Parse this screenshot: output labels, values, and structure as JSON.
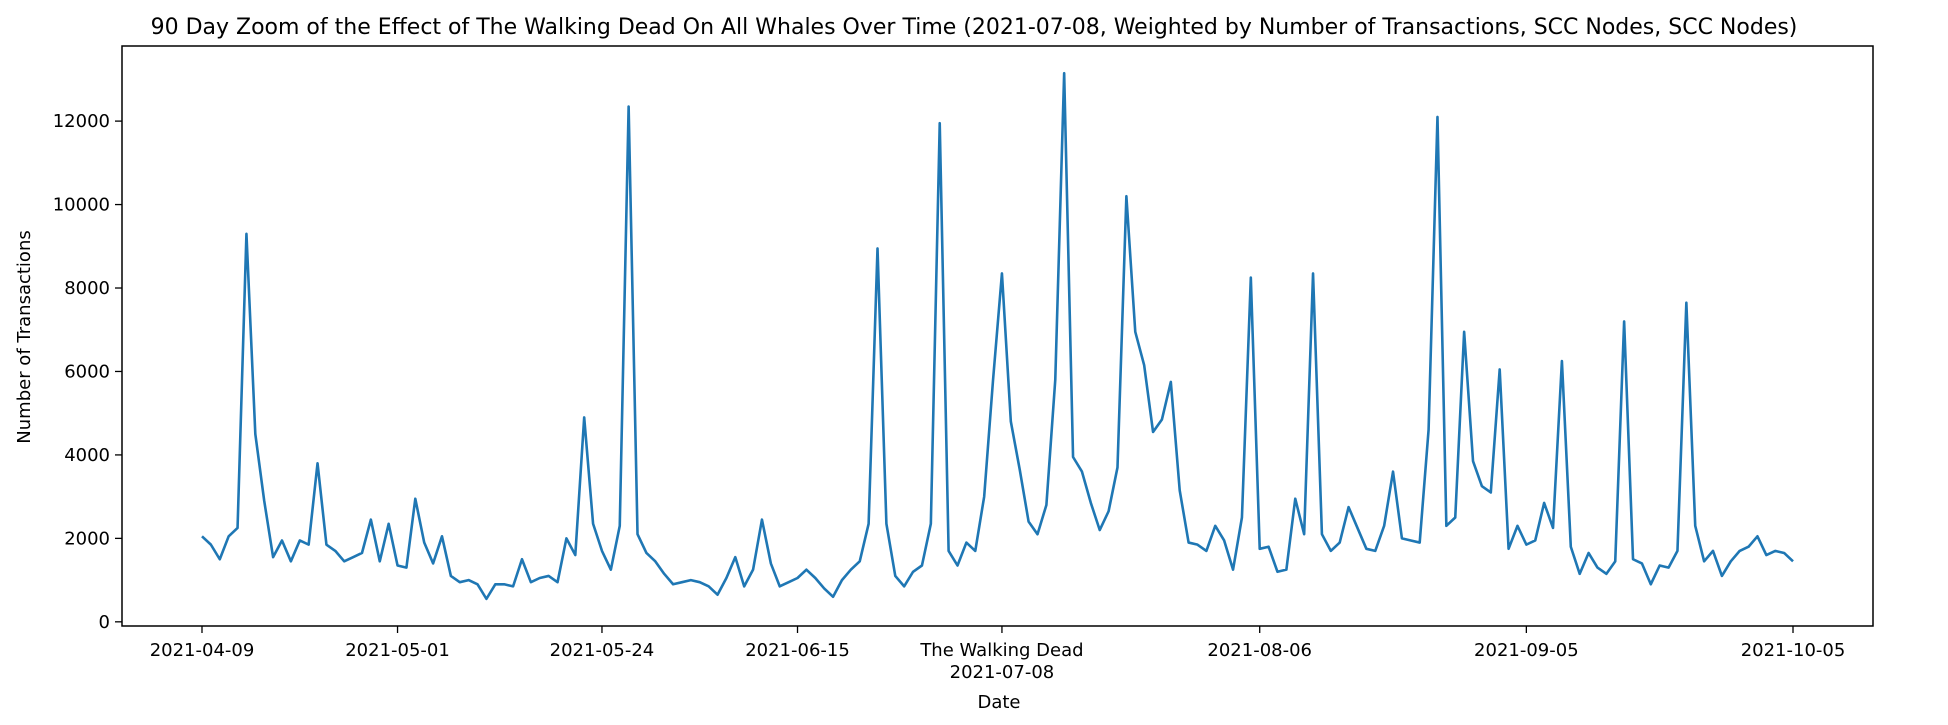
{
  "chart_data": {
    "type": "line",
    "title": "90 Day Zoom of the Effect of The Walking Dead On All Whales Over Time (2021-07-08, Weighted by Number of Transactions, SCC Nodes, SCC Nodes)",
    "xlabel": "Date",
    "ylabel": "Number of Transactions",
    "x_start": "2021-04-09",
    "x_end": "2021-10-05",
    "xlim": [
      "2021-03-31",
      "2021-10-14"
    ],
    "ylim": [
      -100,
      13800
    ],
    "grid": false,
    "legend": "none",
    "line_color": "#1f77b4",
    "event": {
      "label": "The Walking Dead",
      "date": "2021-07-08"
    },
    "x_ticks": [
      {
        "date": "2021-04-09",
        "label": "2021-04-09"
      },
      {
        "date": "2021-05-01",
        "label": "2021-05-01"
      },
      {
        "date": "2021-05-24",
        "label": "2021-05-24"
      },
      {
        "date": "2021-06-15",
        "label": "2021-06-15"
      },
      {
        "date": "2021-07-08",
        "label": "The Walking Dead",
        "label2": "2021-07-08"
      },
      {
        "date": "2021-08-06",
        "label": "2021-08-06"
      },
      {
        "date": "2021-09-05",
        "label": "2021-09-05"
      },
      {
        "date": "2021-10-05",
        "label": "2021-10-05"
      }
    ],
    "y_ticks": [
      0,
      2000,
      4000,
      6000,
      8000,
      10000,
      12000
    ],
    "series": [
      {
        "values": [
          2050,
          1850,
          1500,
          2050,
          2250,
          9300,
          4500,
          2900,
          1550,
          1950,
          1450,
          1950,
          1850,
          3800,
          1850,
          1700,
          1450,
          1550,
          1650,
          2450,
          1450,
          2350,
          1350,
          1300,
          2950,
          1900,
          1400,
          2050,
          1100,
          950,
          1000,
          900,
          550,
          900,
          900,
          850,
          1500,
          950,
          1050,
          1100,
          950,
          2000,
          1600,
          4900,
          2350,
          1700,
          1250,
          2300,
          12350,
          2100,
          1650,
          1450,
          1150,
          900,
          950,
          1000,
          950,
          850,
          650,
          1050,
          1550,
          850,
          1250,
          2450,
          1400,
          850,
          950,
          1050,
          1250,
          1050,
          800,
          600,
          1000,
          1250,
          1450,
          2350,
          8950,
          2350,
          1100,
          850,
          1200,
          1350,
          2350,
          11950,
          1700,
          1350,
          1900,
          1700,
          3000,
          5800,
          8350,
          4800,
          3650,
          2400,
          2100,
          2800,
          5800,
          13150,
          3950,
          3600,
          2850,
          2200,
          2650,
          3700,
          10200,
          6950,
          6150,
          4550,
          4850,
          5750,
          3150,
          1900,
          1850,
          1700,
          2300,
          1950,
          1250,
          2500,
          8250,
          1750,
          1800,
          1200,
          1250,
          2950,
          2100,
          8350,
          2100,
          1700,
          1900,
          2750,
          2250,
          1750,
          1700,
          2300,
          3600,
          2000,
          1950,
          1900,
          4600,
          12100,
          2300,
          2500,
          6950,
          3850,
          3250,
          3100,
          6050,
          1750,
          2300,
          1850,
          1950,
          2850,
          2250,
          6250,
          1800,
          1150,
          1650,
          1300,
          1150,
          1450,
          7200,
          1500,
          1400,
          900,
          1350,
          1300,
          1700,
          7650,
          2300,
          1450,
          1700,
          1100,
          1450,
          1700,
          1800,
          2050,
          1600,
          1700,
          1650,
          1450
        ]
      }
    ]
  }
}
